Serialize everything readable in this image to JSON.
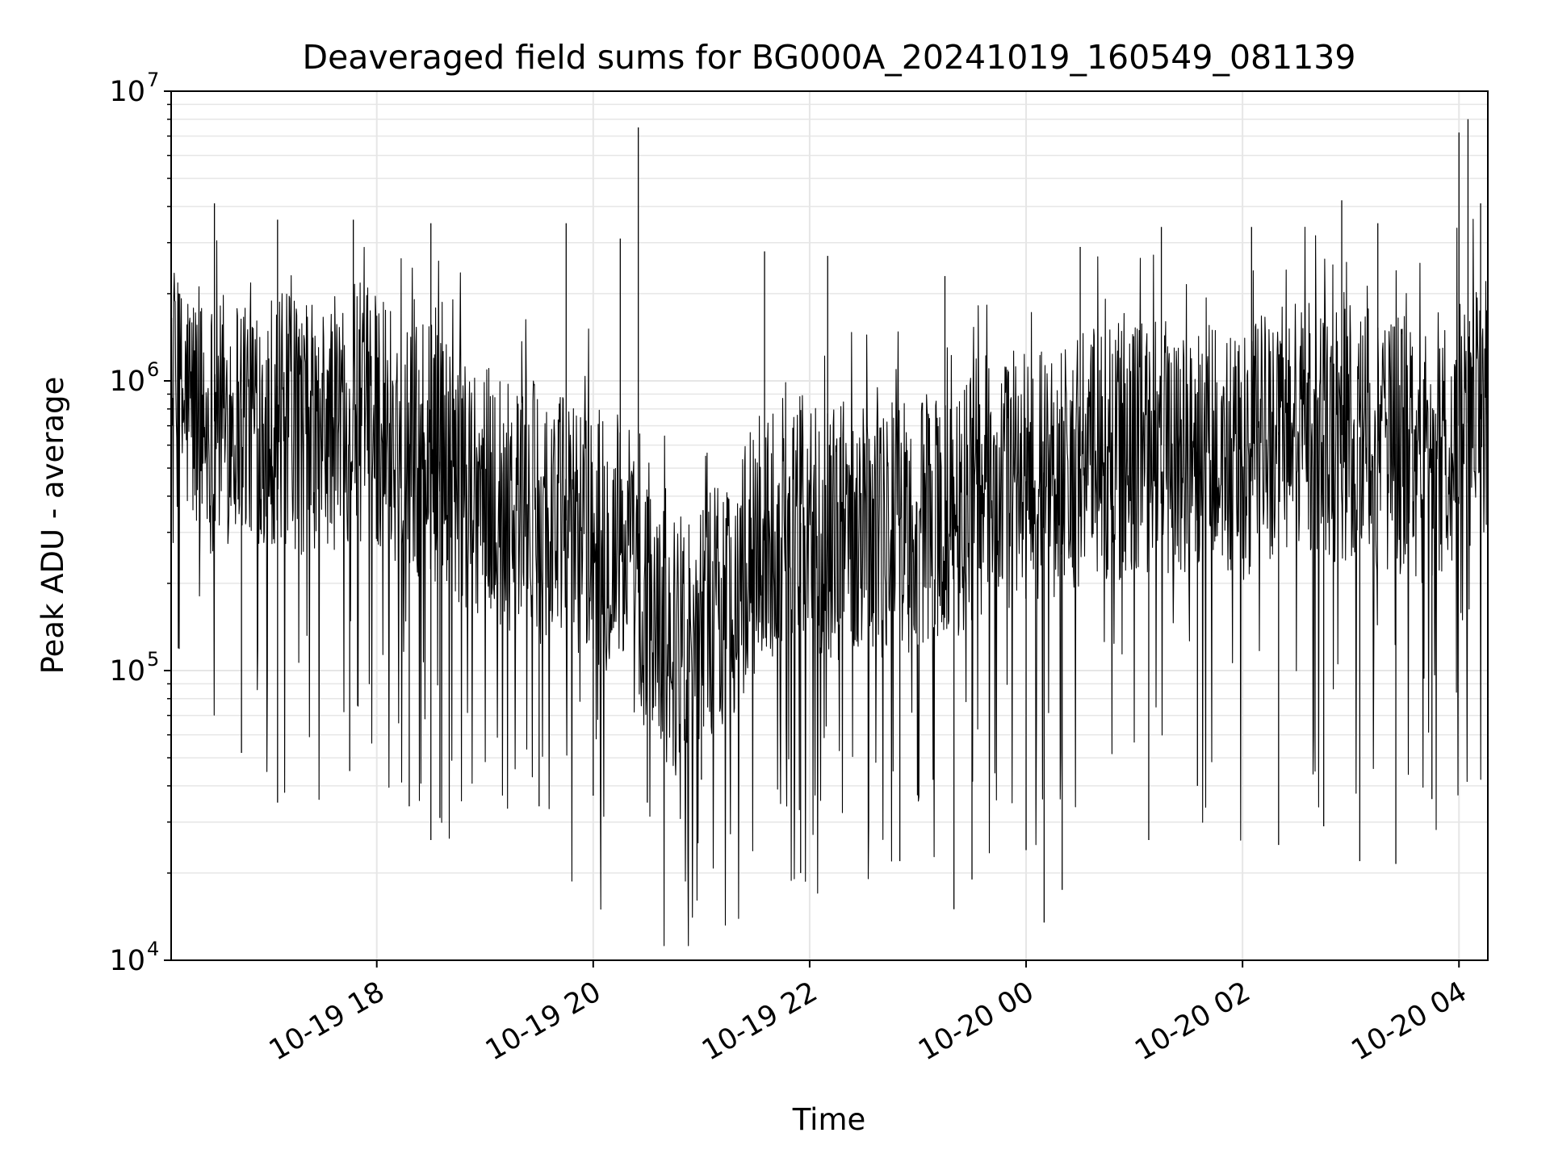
{
  "chart_data": {
    "type": "line",
    "title": "Deaveraged field sums for BG000A_20241019_160549_081139",
    "xlabel": "Time",
    "ylabel": "Peak ADU - average",
    "yscale": "log",
    "ylim": [
      10000,
      10000000
    ],
    "xlim": [
      "2024-10-19 16:06",
      "2024-10-20 04:16"
    ],
    "grid": true,
    "grid_color": "#e6e6e6",
    "line_color": "#000000",
    "y_ticks": [
      {
        "base": "10",
        "exp": "4",
        "value": 10000
      },
      {
        "base": "10",
        "exp": "5",
        "value": 100000
      },
      {
        "base": "10",
        "exp": "6",
        "value": 1000000
      },
      {
        "base": "10",
        "exp": "7",
        "value": 10000000
      }
    ],
    "x_ticks": [
      {
        "label": "10-19 18",
        "time": "2024-10-19 18:00"
      },
      {
        "label": "10-19 20",
        "time": "2024-10-19 20:00"
      },
      {
        "label": "10-19 22",
        "time": "2024-10-19 22:00"
      },
      {
        "label": "10-20 00",
        "time": "2024-10-20 00:00"
      },
      {
        "label": "10-20 02",
        "time": "2024-10-20 02:00"
      },
      {
        "label": "10-20 04",
        "time": "2024-10-20 04:00"
      }
    ],
    "series": [
      {
        "points": [
          [
            "2024-10-19 16:06",
            700000
          ],
          [
            "2024-10-19 16:15",
            850000
          ],
          [
            "2024-10-19 16:25",
            700000
          ],
          [
            "2024-10-19 16:35",
            750000
          ],
          [
            "2024-10-19 16:45",
            800000
          ],
          [
            "2024-10-19 17:00",
            750000
          ],
          [
            "2024-10-19 17:15",
            700000
          ],
          [
            "2024-10-19 17:30",
            650000
          ],
          [
            "2024-10-19 17:45",
            800000
          ],
          [
            "2024-10-19 18:00",
            750000
          ],
          [
            "2024-10-19 18:15",
            620000
          ],
          [
            "2024-10-19 18:30",
            550000
          ],
          [
            "2024-10-19 18:45",
            480000
          ],
          [
            "2024-10-19 19:00",
            420000
          ],
          [
            "2024-10-19 19:15",
            380000
          ],
          [
            "2024-10-19 19:30",
            350000
          ],
          [
            "2024-10-19 19:45",
            330000
          ],
          [
            "2024-10-19 20:00",
            300000
          ],
          [
            "2024-10-19 20:15",
            250000
          ],
          [
            "2024-10-19 20:30",
            160000
          ],
          [
            "2024-10-19 20:45",
            120000
          ],
          [
            "2024-10-19 21:00",
            140000
          ],
          [
            "2024-10-19 21:15",
            180000
          ],
          [
            "2024-10-19 21:30",
            260000
          ],
          [
            "2024-10-19 21:45",
            330000
          ],
          [
            "2024-10-19 22:00",
            320000
          ],
          [
            "2024-10-19 22:15",
            300000
          ],
          [
            "2024-10-19 22:30",
            330000
          ],
          [
            "2024-10-19 22:45",
            300000
          ],
          [
            "2024-10-19 23:00",
            320000
          ],
          [
            "2024-10-19 23:15",
            330000
          ],
          [
            "2024-10-19 23:30",
            420000
          ],
          [
            "2024-10-19 23:45",
            450000
          ],
          [
            "2024-10-20 00:00",
            450000
          ],
          [
            "2024-10-20 00:15",
            500000
          ],
          [
            "2024-10-20 00:30",
            550000
          ],
          [
            "2024-10-20 00:45",
            550000
          ],
          [
            "2024-10-20 01:00",
            600000
          ],
          [
            "2024-10-20 01:15",
            600000
          ],
          [
            "2024-10-20 01:30",
            580000
          ],
          [
            "2024-10-20 01:45",
            550000
          ],
          [
            "2024-10-20 02:00",
            500000
          ],
          [
            "2024-10-20 02:15",
            650000
          ],
          [
            "2024-10-20 02:30",
            700000
          ],
          [
            "2024-10-20 02:45",
            650000
          ],
          [
            "2024-10-20 03:00",
            650000
          ],
          [
            "2024-10-20 03:15",
            620000
          ],
          [
            "2024-10-20 03:30",
            600000
          ],
          [
            "2024-10-20 03:45",
            500000
          ],
          [
            "2024-10-20 04:00",
            700000
          ],
          [
            "2024-10-20 04:16",
            750000
          ]
        ]
      }
    ],
    "spikes_high": [
      [
        "2024-10-19 16:30",
        4100000
      ],
      [
        "2024-10-19 17:05",
        3600000
      ],
      [
        "2024-10-19 17:47",
        3600000
      ],
      [
        "2024-10-19 18:30",
        3500000
      ],
      [
        "2024-10-19 19:45",
        3500000
      ],
      [
        "2024-10-19 20:15",
        3100000
      ],
      [
        "2024-10-19 20:25",
        7500000
      ],
      [
        "2024-10-19 21:35",
        2800000
      ],
      [
        "2024-10-19 22:10",
        2700000
      ],
      [
        "2024-10-19 23:15",
        2300000
      ],
      [
        "2024-10-20 00:30",
        2900000
      ],
      [
        "2024-10-20 01:15",
        3400000
      ],
      [
        "2024-10-20 02:05",
        3400000
      ],
      [
        "2024-10-20 02:55",
        4200000
      ],
      [
        "2024-10-20 03:15",
        3500000
      ],
      [
        "2024-10-20 04:00",
        7200000
      ],
      [
        "2024-10-20 04:05",
        8000000
      ],
      [
        "2024-10-20 04:12",
        4100000
      ]
    ],
    "spikes_low": [
      [
        "2024-10-19 16:45",
        52000
      ],
      [
        "2024-10-19 17:05",
        35000
      ],
      [
        "2024-10-19 17:45",
        45000
      ],
      [
        "2024-10-19 18:18",
        34000
      ],
      [
        "2024-10-19 18:30",
        26000
      ],
      [
        "2024-10-19 18:35",
        31000
      ],
      [
        "2024-10-19 19:30",
        34000
      ],
      [
        "2024-10-19 20:00",
        37000
      ],
      [
        "2024-10-19 20:30",
        35000
      ],
      [
        "2024-10-19 21:00",
        42000
      ],
      [
        "2024-10-19 21:55",
        20000
      ],
      [
        "2024-10-19 22:50",
        22000
      ],
      [
        "2024-10-19 23:20",
        15000
      ],
      [
        "2024-10-19 23:30",
        19000
      ],
      [
        "2024-10-20 00:00",
        24000
      ],
      [
        "2024-10-20 00:10",
        13500
      ],
      [
        "2024-10-20 00:20",
        17500
      ],
      [
        "2024-10-20 01:08",
        26000
      ],
      [
        "2024-10-20 01:35",
        40000
      ],
      [
        "2024-10-20 02:20",
        25000
      ],
      [
        "2024-10-20 02:45",
        29000
      ],
      [
        "2024-10-20 03:05",
        22000
      ],
      [
        "2024-10-20 03:25",
        21500
      ],
      [
        "2024-10-20 03:45",
        36000
      ]
    ]
  }
}
